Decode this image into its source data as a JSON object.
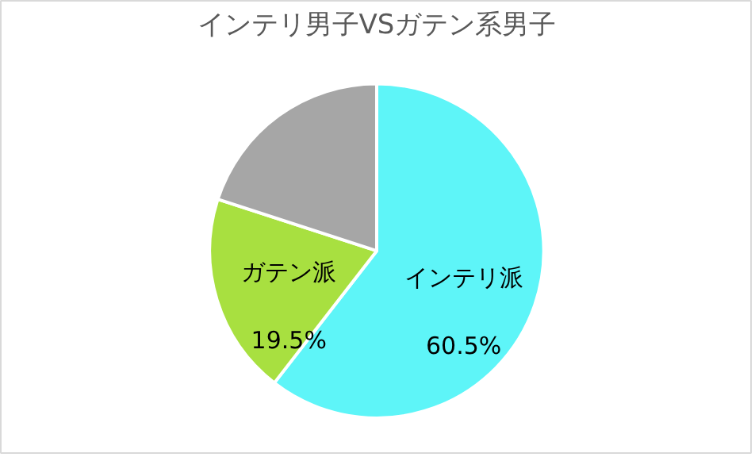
{
  "chart_data": {
    "type": "pie",
    "title": "インテリ男子VSガテン系男子",
    "categories": [
      "インテリ派",
      "ガテン派",
      null
    ],
    "values": [
      60.5,
      19.5,
      20
    ],
    "colors": [
      "#5ef5f8",
      "#a8e040",
      "#a6a6a6"
    ],
    "value_labels": [
      "60.5%",
      "19.5%",
      null
    ]
  }
}
